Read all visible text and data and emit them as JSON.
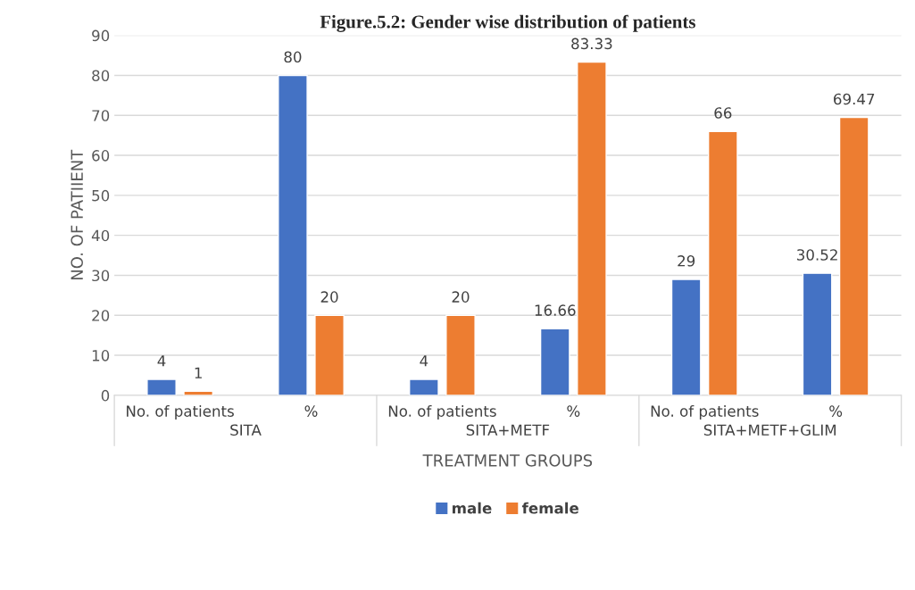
{
  "chart_data": {
    "type": "bar",
    "title": "Figure.5.2: Gender wise distribution of patients",
    "xlabel": "TREATMENT GROUPS",
    "ylabel": "NO. OF PATIIENT",
    "categories": [
      "No. of patients",
      "%",
      "No. of patients",
      "%",
      "No. of patients",
      "%"
    ],
    "annotations": [
      "SITA",
      "SITA+METF",
      "SITA+METF+GLIM"
    ],
    "series": [
      {
        "name": "male",
        "color": "#4472c4",
        "values": [
          4,
          80,
          4,
          16.66,
          29,
          30.52
        ]
      },
      {
        "name": "female",
        "color": "#ed7d31",
        "values": [
          1,
          20,
          20,
          83.33,
          66,
          69.47
        ]
      }
    ],
    "ylim": [
      0,
      90
    ],
    "yticks": [
      0,
      10,
      20,
      30,
      40,
      50,
      60,
      70,
      80,
      90
    ],
    "grid": "y",
    "legend": "bottom",
    "data_labels": true
  }
}
